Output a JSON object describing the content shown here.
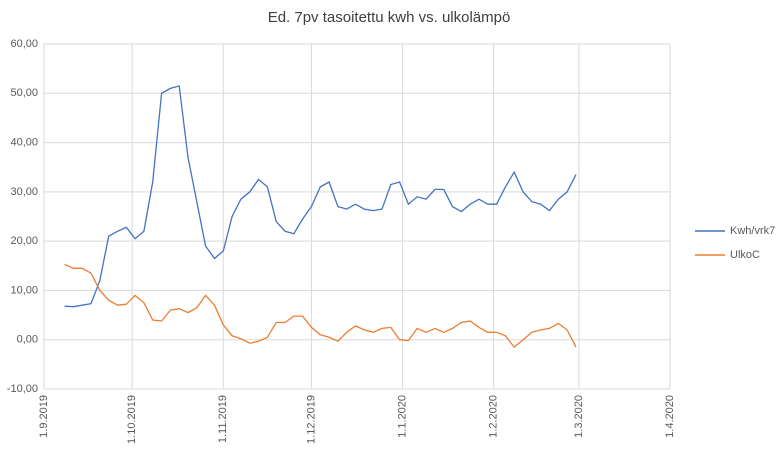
{
  "chart_data": {
    "type": "line",
    "title": "Ed. 7pv tasoitettu kwh vs. ulkolämpö",
    "x": [
      "8.9.2019",
      "11.9.2019",
      "14.9.2019",
      "17.9.2019",
      "20.9.2019",
      "23.9.2019",
      "26.9.2019",
      "29.9.2019",
      "2.10.2019",
      "5.10.2019",
      "8.10.2019",
      "11.10.2019",
      "14.10.2019",
      "17.10.2019",
      "20.10.2019",
      "23.10.2019",
      "26.10.2019",
      "29.10.2019",
      "1.11.2019",
      "4.11.2019",
      "7.11.2019",
      "10.11.2019",
      "13.11.2019",
      "16.11.2019",
      "19.11.2019",
      "22.11.2019",
      "25.11.2019",
      "28.11.2019",
      "1.12.2019",
      "4.12.2019",
      "7.12.2019",
      "10.12.2019",
      "13.12.2019",
      "16.12.2019",
      "19.12.2019",
      "22.12.2019",
      "25.12.2019",
      "28.12.2019",
      "31.12.2019",
      "3.1.2020",
      "6.1.2020",
      "9.1.2020",
      "12.1.2020",
      "15.1.2020",
      "18.1.2020",
      "21.1.2020",
      "24.1.2020",
      "27.1.2020",
      "30.1.2020",
      "2.2.2020",
      "5.2.2020",
      "8.2.2020",
      "11.2.2020",
      "14.2.2020",
      "17.2.2020",
      "20.2.2020",
      "23.2.2020",
      "26.2.2020",
      "29.2.2020"
    ],
    "series": [
      {
        "name": "Kwh/vrk7",
        "color": "#4472c4",
        "values": [
          6.8,
          6.7,
          7.0,
          7.3,
          12,
          21,
          22,
          22.8,
          20.5,
          22,
          32,
          50,
          51,
          51.5,
          37,
          28,
          19,
          16.5,
          18,
          25,
          28.5,
          30,
          32.5,
          31,
          24,
          22,
          21.5,
          24.5,
          27,
          31,
          32,
          27,
          26.5,
          27.5,
          26.5,
          26.2,
          26.5,
          31.5,
          32,
          27.5,
          29,
          28.5,
          30.5,
          30.5,
          27,
          26,
          27.5,
          28.5,
          27.5,
          27.5,
          31,
          34,
          30,
          28,
          27.5,
          26.2,
          28.5,
          30,
          33.5
        ]
      },
      {
        "name": "UlkoC",
        "color": "#ed7d31",
        "values": [
          15.3,
          14.5,
          14.5,
          13.5,
          10,
          8,
          7,
          7.2,
          9,
          7.5,
          4,
          3.8,
          6,
          6.3,
          5.5,
          6.5,
          9,
          7,
          3,
          0.8,
          0.2,
          -0.7,
          -0.3,
          0.5,
          3.5,
          3.5,
          4.8,
          4.8,
          2.5,
          1,
          0.5,
          -0.3,
          1.5,
          2.8,
          2.0,
          1.5,
          2.3,
          2.5,
          0,
          -0.2,
          2.3,
          1.5,
          2.3,
          1.5,
          2.3,
          3.5,
          3.8,
          2.5,
          1.5,
          1.5,
          0.8,
          -1.5,
          0,
          1.5,
          2,
          2.3,
          3.3,
          2,
          -1.5
        ]
      }
    ],
    "xlim": [
      "1.9.2019",
      "1.4.2020"
    ],
    "xticks": [
      "1.9.2019",
      "1.10.2019",
      "1.11.2019",
      "1.12.2019",
      "1.1.2020",
      "1.2.2020",
      "1.3.2020",
      "1.4.2020"
    ],
    "ylim": [
      -10,
      60
    ],
    "yticks": [
      {
        "value": -10,
        "label": "-10,00"
      },
      {
        "value": 0,
        "label": "0,00"
      },
      {
        "value": 10,
        "label": "10,00"
      },
      {
        "value": 20,
        "label": "20,00"
      },
      {
        "value": 30,
        "label": "30,00"
      },
      {
        "value": 40,
        "label": "40,00"
      },
      {
        "value": 50,
        "label": "50,00"
      },
      {
        "value": 60,
        "label": "60,00"
      }
    ],
    "grid": true,
    "legend": "right"
  }
}
